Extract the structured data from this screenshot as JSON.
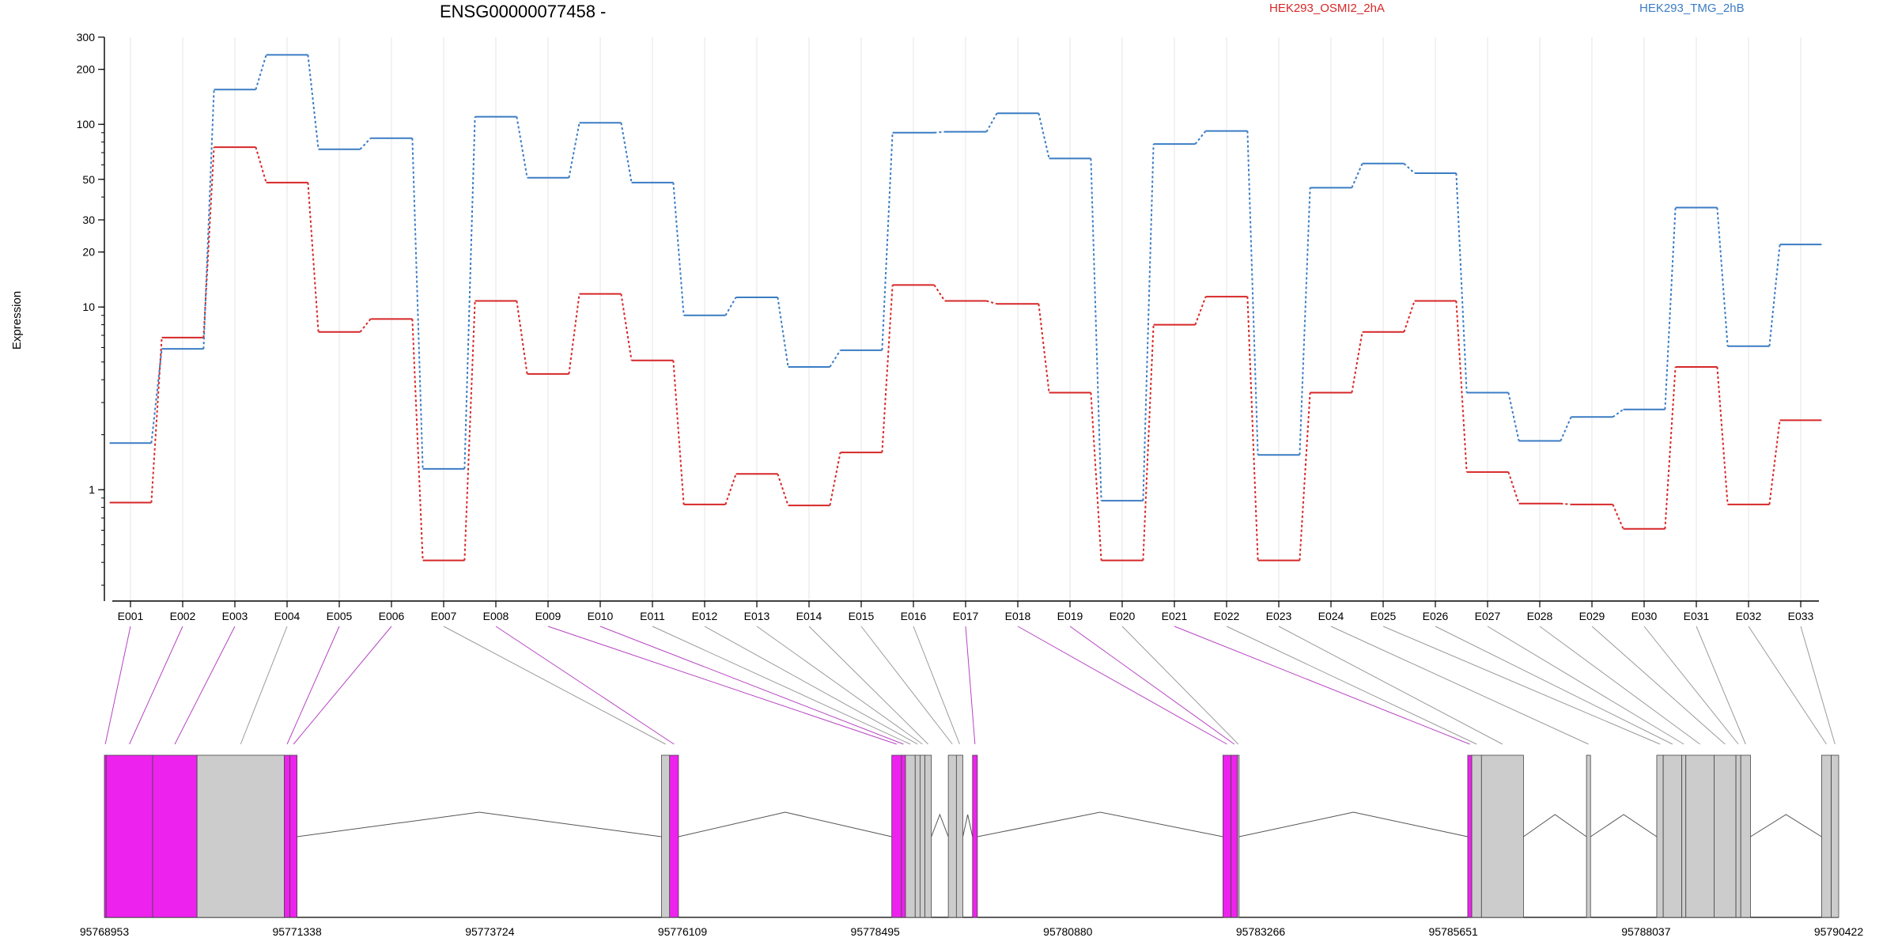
{
  "chart_data": {
    "type": "line",
    "title": "ENSG00000077458 -",
    "xlabel": "",
    "ylabel": "Expression",
    "y_scale": "log",
    "ylim": [
      0.3,
      300
    ],
    "y_ticks": [
      1,
      10,
      20,
      30,
      50,
      100,
      200,
      300
    ],
    "legend_placement": "top-right",
    "colors": {
      "series_a": "#d62728",
      "series_b": "#3b7cc4",
      "exon_highlight": "#ee22ee",
      "exon": "#cccccc"
    },
    "categories": [
      "E001",
      "E002",
      "E003",
      "E004",
      "E005",
      "E006",
      "E007",
      "E008",
      "E009",
      "E010",
      "E011",
      "E012",
      "E013",
      "E014",
      "E015",
      "E016",
      "E017",
      "E018",
      "E019",
      "E020",
      "E021",
      "E022",
      "E023",
      "E024",
      "E025",
      "E026",
      "E027",
      "E028",
      "E029",
      "E030",
      "E031",
      "E032",
      "E033"
    ],
    "series": [
      {
        "name": "HEK293_OSMI2_2hA",
        "values": [
          0.85,
          6.8,
          75,
          48,
          7.3,
          8.6,
          0.41,
          10.8,
          4.3,
          11.8,
          5.1,
          0.83,
          1.22,
          0.82,
          1.6,
          13.2,
          10.8,
          10.4,
          3.4,
          0.41,
          8.0,
          11.4,
          0.41,
          3.4,
          7.3,
          10.8,
          1.25,
          0.84,
          0.83,
          0.61,
          4.7,
          0.83,
          2.4
        ]
      },
      {
        "name": "HEK293_TMG_2hB",
        "values": [
          1.8,
          5.9,
          155,
          240,
          73,
          84,
          1.3,
          110,
          51,
          102,
          48,
          9.0,
          11.3,
          4.7,
          5.8,
          90,
          91,
          115,
          65,
          0.87,
          78,
          92,
          1.55,
          45,
          61,
          54,
          3.4,
          1.85,
          2.5,
          2.75,
          35,
          6.1,
          22
        ]
      }
    ],
    "genome_ticks": [
      "95768953",
      "95771338",
      "95773724",
      "95776109",
      "95778495",
      "95780880",
      "95783266",
      "95785651",
      "95788037",
      "95790422"
    ],
    "genome_range": [
      95768953,
      95790422
    ],
    "exons": [
      {
        "id": "E001",
        "start": 95768953,
        "end": 95768975,
        "hl": true
      },
      {
        "id": "E002",
        "start": 95768975,
        "end": 95769550,
        "hl": true
      },
      {
        "id": "E003",
        "start": 95769550,
        "end": 95770100,
        "hl": true
      },
      {
        "id": "E004",
        "start": 95770100,
        "end": 95771180,
        "hl": false
      },
      {
        "id": "E005",
        "start": 95771180,
        "end": 95771250,
        "hl": true
      },
      {
        "id": "E006",
        "start": 95771250,
        "end": 95771338,
        "hl": true
      },
      {
        "id": "E007",
        "start": 95775850,
        "end": 95775950,
        "hl": false
      },
      {
        "id": "E008",
        "start": 95775950,
        "end": 95776060,
        "hl": true
      },
      {
        "id": "E009",
        "start": 95778700,
        "end": 95778820,
        "hl": true
      },
      {
        "id": "E010",
        "start": 95778820,
        "end": 95778870,
        "hl": true
      },
      {
        "id": "E011",
        "start": 95778870,
        "end": 95778990,
        "hl": false
      },
      {
        "id": "E012",
        "start": 95778990,
        "end": 95779050,
        "hl": false
      },
      {
        "id": "E013",
        "start": 95779050,
        "end": 95779110,
        "hl": false
      },
      {
        "id": "E014",
        "start": 95779110,
        "end": 95779190,
        "hl": false
      },
      {
        "id": "E015",
        "start": 95779400,
        "end": 95779500,
        "hl": false
      },
      {
        "id": "E016",
        "start": 95779500,
        "end": 95779580,
        "hl": false
      },
      {
        "id": "E017",
        "start": 95779700,
        "end": 95779760,
        "hl": true
      },
      {
        "id": "E018",
        "start": 95782800,
        "end": 95782900,
        "hl": true
      },
      {
        "id": "E019",
        "start": 95782900,
        "end": 95782980,
        "hl": true
      },
      {
        "id": "E020",
        "start": 95782980,
        "end": 95783000,
        "hl": false
      },
      {
        "id": "E021",
        "start": 95785830,
        "end": 95785880,
        "hl": true
      },
      {
        "id": "E022",
        "start": 95785880,
        "end": 95786000,
        "hl": false
      },
      {
        "id": "E023",
        "start": 95786000,
        "end": 95786520,
        "hl": false
      },
      {
        "id": "E024",
        "start": 95787300,
        "end": 95787350,
        "hl": false
      },
      {
        "id": "E025",
        "start": 95788170,
        "end": 95788250,
        "hl": false
      },
      {
        "id": "E026",
        "start": 95788250,
        "end": 95788480,
        "hl": false
      },
      {
        "id": "E027",
        "start": 95788480,
        "end": 95788530,
        "hl": false
      },
      {
        "id": "E028",
        "start": 95788530,
        "end": 95788880,
        "hl": false
      },
      {
        "id": "E029",
        "start": 95788880,
        "end": 95789150,
        "hl": false
      },
      {
        "id": "E030",
        "start": 95789150,
        "end": 95789210,
        "hl": false
      },
      {
        "id": "E031",
        "start": 95789210,
        "end": 95789330,
        "hl": false
      },
      {
        "id": "E032",
        "start": 95790210,
        "end": 95790330,
        "hl": false
      },
      {
        "id": "E033",
        "start": 95790330,
        "end": 95790422,
        "hl": false
      }
    ]
  }
}
